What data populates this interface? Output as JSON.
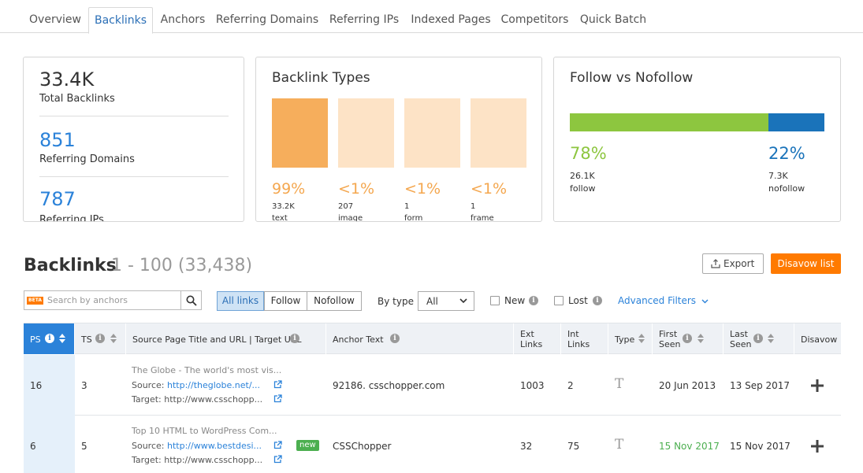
{
  "tabs": [
    "Overview",
    "Backlinks",
    "Anchors",
    "Referring Domains",
    "Referring IPs",
    "Indexed Pages",
    "Competitors",
    "Quick Batch"
  ],
  "summary": {
    "total_backlinks": "33.4K",
    "total_backlinks_label": "Total Backlinks",
    "referring_domains": "851",
    "referring_domains_label": "Referring Domains",
    "referring_ips": "787",
    "referring_ips_label": "Referring IPs"
  },
  "backlink_types": {
    "title": "Backlink Types",
    "items": [
      {
        "pct": "99%",
        "count": "33.2K",
        "label": "text",
        "level": 0.99
      },
      {
        "pct": "<1%",
        "count": "207",
        "label": "image",
        "level": 0.01
      },
      {
        "pct": "<1%",
        "count": "1",
        "label": "form",
        "level": 0.0
      },
      {
        "pct": "<1%",
        "count": "1",
        "label": "frame",
        "level": 0.0
      }
    ]
  },
  "follow": {
    "title": "Follow vs Nofollow",
    "follow_pct": "78%",
    "follow_count": "26.1K",
    "follow_label": "follow",
    "follow_fraction": 0.78,
    "nofollow_pct": "22%",
    "nofollow_count": "7.3K",
    "nofollow_label": "nofollow"
  },
  "section": {
    "title": "Backlinks",
    "range": "1 - 100 (33,438)",
    "export_label": "Export",
    "disavow_label": "Disavow list"
  },
  "filters": {
    "beta": "BETA",
    "search_placeholder": "Search by anchors",
    "segments": [
      "All links",
      "Follow",
      "Nofollow"
    ],
    "by_type_label": "By type",
    "type_value": "All",
    "new_label": "New",
    "lost_label": "Lost",
    "advanced_label": "Advanced Filters"
  },
  "table": {
    "headers": {
      "ps": "PS",
      "ts": "TS",
      "source": "Source Page Title and URL | Target URL",
      "anchor": "Anchor Text",
      "ext1": "Ext",
      "ext2": "Links",
      "int1": "Int",
      "int2": "Links",
      "type": "Type",
      "first1": "First",
      "first2": "Seen",
      "last1": "Last",
      "last2": "Seen",
      "disavow": "Disavow"
    },
    "source_prefix": "Source:",
    "target_prefix": "Target:",
    "new_badge": "new",
    "type_glyph": "T",
    "rows": [
      {
        "ps": "16",
        "ts": "3",
        "title": "The Globe - The world's most vis...",
        "source_url": "http://theglobe.net/...",
        "target_url": "http://www.csschopp...",
        "anchor": "92186. csschopper.com",
        "ext": "1003",
        "int": "2",
        "first_seen": "20 Jun 2013",
        "last_seen": "13 Sep 2017"
      },
      {
        "ps": "6",
        "ts": "5",
        "title": "Top 10 HTML to WordPress Com...",
        "source_url": "http://www.bestdesi...",
        "target_url": "http://www.csschopp...",
        "anchor": "CSSChopper",
        "ext": "32",
        "int": "75",
        "first_seen": "15 Nov 2017",
        "last_seen": "15 Nov 2017"
      }
    ]
  },
  "colors": {
    "accent": "#2b82d9",
    "orange": "#ff7a00",
    "bar_main": "#f6ae5c",
    "bar_light": "#fde3c6",
    "follow_green": "#8dc63f",
    "nofollow_blue": "#1a73ba"
  }
}
